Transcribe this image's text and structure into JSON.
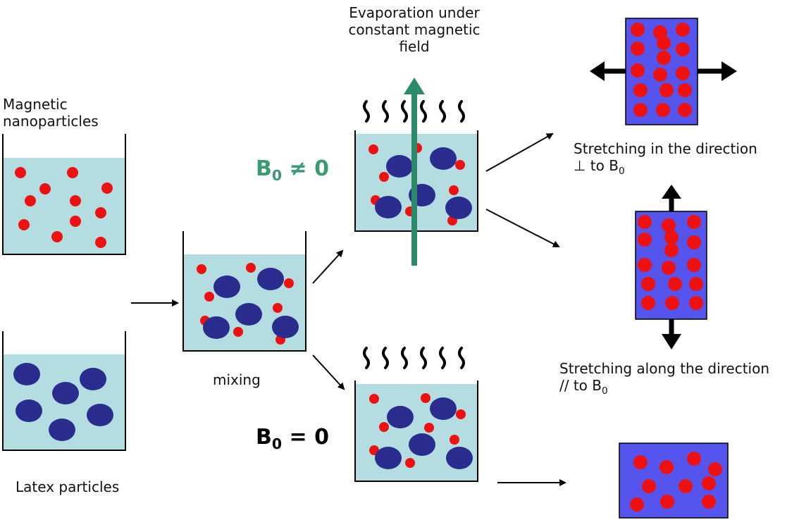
{
  "labels": {
    "magnetic_line1": "Magnetic",
    "magnetic_line2": "nanoparticles",
    "latex": "Latex particles",
    "mixing": "mixing",
    "evaporation_line1": "Evaporation under",
    "evaporation_line2": "constant magnetic",
    "evaporation_line3": "field",
    "field_on_prefix": "B",
    "field_on_sub": "0",
    "field_on_suffix": " ≠ 0",
    "field_off_prefix": "B",
    "field_off_sub": "0",
    "field_off_suffix": " = 0",
    "stretch_perp_line1": "Stretching in the direction",
    "stretch_perp_line2": "⊥ to B",
    "stretch_perp_sub": "0",
    "stretch_par_line1": "Stretching along the direction",
    "stretch_par_line2": "// to B",
    "stretch_par_sub": "0"
  },
  "colors": {
    "water": "#b3dde0",
    "nanoparticle": "#ee1111",
    "latex": "#2b2d8e",
    "film": "#5555ee",
    "field_arrow": "#2e8b6a",
    "field_text": "#3a9b72"
  }
}
